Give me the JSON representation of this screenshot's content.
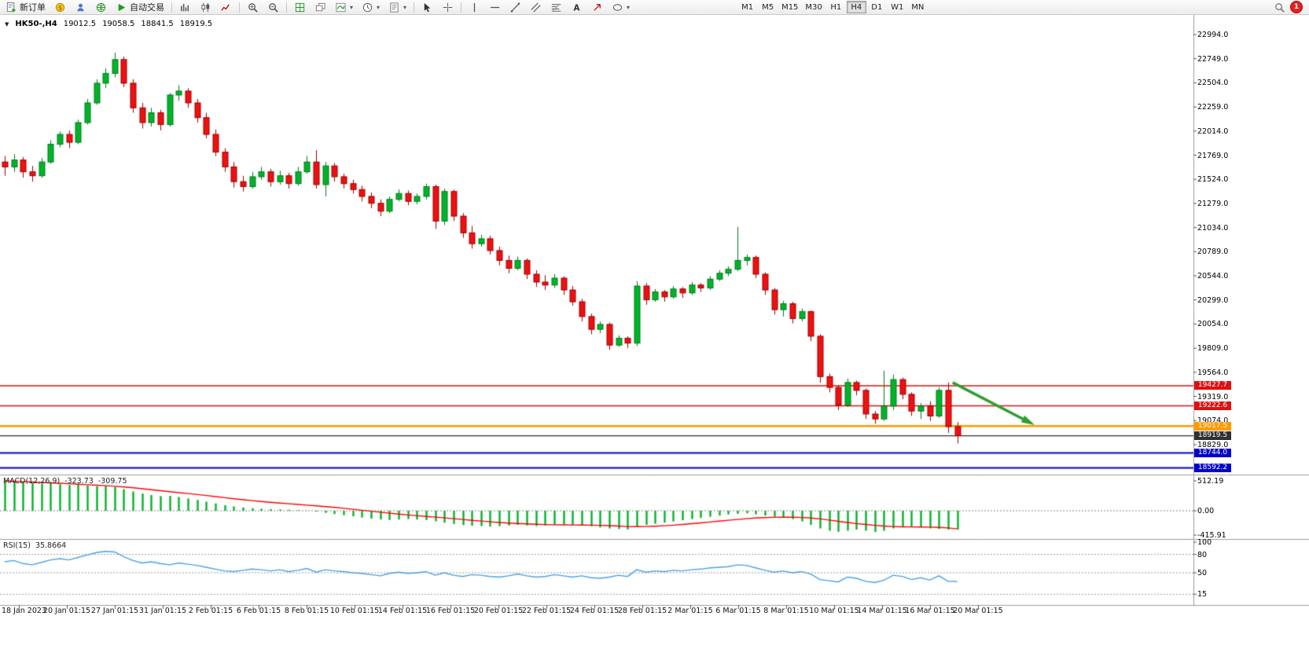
{
  "toolbar": {
    "new_order_label": "新订单",
    "auto_trading_label": "自动交易",
    "timeframes": [
      "M1",
      "M5",
      "M15",
      "M30",
      "H1",
      "H4",
      "D1",
      "W1",
      "MN"
    ],
    "active_timeframe": "H4",
    "notification_count": "1"
  },
  "symbol_bar": {
    "symbol": "HK50-,H4",
    "open": "19012.5",
    "high": "19058.5",
    "low": "18841.5",
    "close": "18919.5"
  },
  "colors": {
    "candle_up": "#00b42a",
    "candle_up_border": "#007a1c",
    "candle_down": "#ef1010",
    "candle_down_border": "#9c0000",
    "macd_hist": "#00b42a",
    "macd_signal": "#ff0000",
    "rsi_line": "#4aa0e0",
    "arrow": "#2f9e2f",
    "level_red": "#dd1111",
    "level_orange": "#ff9b00",
    "level_black": "#303030",
    "level_blue": "#0000c8"
  },
  "chart_data": {
    "type": "candlestick",
    "title": "HK50-,H4",
    "timeframe": "H4",
    "ohlc_display": {
      "open": 19012.5,
      "high": 19058.5,
      "low": 18841.5,
      "close": 18919.5
    },
    "y_axis_range": [
      18541,
      23106
    ],
    "y_ticks": [
      "22994.0",
      "22749.0",
      "22504.0",
      "22259.0",
      "22014.0",
      "21769.0",
      "21524.0",
      "21279.0",
      "21034.0",
      "20789.0",
      "20544.0",
      "20299.0",
      "20054.0",
      "19809.0",
      "19564.0",
      "19319.0",
      "19074.0",
      "18829.0"
    ],
    "x_labels": [
      "18 Jan 2023",
      "20 Jan 01:15",
      "27 Jan 01:15",
      "31 Jan 01:15",
      "2 Feb 01:15",
      "6 Feb 01:15",
      "8 Feb 01:15",
      "10 Feb 01:15",
      "14 Feb 01:15",
      "16 Feb 01:15",
      "20 Feb 01:15",
      "22 Feb 01:15",
      "24 Feb 01:15",
      "28 Feb 01:15",
      "2 Mar 01:15",
      "6 Mar 01:15",
      "8 Mar 01:15",
      "10 Mar 01:15",
      "14 Mar 01:15",
      "16 Mar 01:15",
      "20 Mar 01:15"
    ],
    "levels": [
      {
        "label": "19427.7",
        "price": 19427.7,
        "style": "red"
      },
      {
        "label": "19222.6",
        "price": 19222.6,
        "style": "red"
      },
      {
        "label": "19017.5",
        "price": 19017.5,
        "style": "orange"
      },
      {
        "label": "18919.5",
        "price": 18919.5,
        "style": "black"
      },
      {
        "label": "18744.0",
        "price": 18744.0,
        "style": "blue"
      },
      {
        "label": "18592.2",
        "price": 18592.2,
        "style": "blue"
      }
    ],
    "arrow_object": {
      "from_bar": 103.5,
      "from_price": 19460,
      "to_bar": 112,
      "to_price": 19050
    },
    "ohlc": [
      [
        21700,
        21760,
        21560,
        21650
      ],
      [
        21650,
        21780,
        21600,
        21720
      ],
      [
        21720,
        21750,
        21540,
        21600
      ],
      [
        21600,
        21660,
        21500,
        21560
      ],
      [
        21560,
        21740,
        21540,
        21700
      ],
      [
        21700,
        21920,
        21680,
        21880
      ],
      [
        21880,
        22010,
        21850,
        21980
      ],
      [
        21980,
        22020,
        21840,
        21900
      ],
      [
        21900,
        22130,
        21880,
        22100
      ],
      [
        22100,
        22340,
        22080,
        22300
      ],
      [
        22300,
        22540,
        22280,
        22500
      ],
      [
        22500,
        22650,
        22450,
        22600
      ],
      [
        22600,
        22810,
        22560,
        22740
      ],
      [
        22740,
        22770,
        22460,
        22500
      ],
      [
        22500,
        22540,
        22200,
        22250
      ],
      [
        22250,
        22300,
        22040,
        22100
      ],
      [
        22100,
        22250,
        22060,
        22200
      ],
      [
        22200,
        22230,
        22020,
        22080
      ],
      [
        22080,
        22400,
        22060,
        22380
      ],
      [
        22380,
        22480,
        22320,
        22420
      ],
      [
        22420,
        22450,
        22250,
        22300
      ],
      [
        22300,
        22340,
        22100,
        22150
      ],
      [
        22150,
        22200,
        21940,
        21980
      ],
      [
        21980,
        22030,
        21760,
        21800
      ],
      [
        21800,
        21840,
        21600,
        21650
      ],
      [
        21650,
        21700,
        21440,
        21500
      ],
      [
        21500,
        21560,
        21400,
        21450
      ],
      [
        21450,
        21600,
        21430,
        21550
      ],
      [
        21550,
        21650,
        21520,
        21600
      ],
      [
        21600,
        21630,
        21450,
        21500
      ],
      [
        21500,
        21610,
        21470,
        21560
      ],
      [
        21560,
        21590,
        21430,
        21480
      ],
      [
        21480,
        21650,
        21460,
        21600
      ],
      [
        21600,
        21760,
        21580,
        21700
      ],
      [
        21700,
        21820,
        21430,
        21470
      ],
      [
        21470,
        21700,
        21350,
        21660
      ],
      [
        21660,
        21690,
        21500,
        21550
      ],
      [
        21550,
        21580,
        21430,
        21480
      ],
      [
        21480,
        21520,
        21380,
        21420
      ],
      [
        21420,
        21460,
        21300,
        21350
      ],
      [
        21350,
        21390,
        21230,
        21280
      ],
      [
        21280,
        21320,
        21150,
        21200
      ],
      [
        21200,
        21350,
        21180,
        21320
      ],
      [
        21320,
        21420,
        21300,
        21380
      ],
      [
        21380,
        21410,
        21260,
        21300
      ],
      [
        21300,
        21380,
        21270,
        21350
      ],
      [
        21350,
        21480,
        21320,
        21450
      ],
      [
        21450,
        21470,
        21020,
        21100
      ],
      [
        21100,
        21430,
        21060,
        21400
      ],
      [
        21400,
        21420,
        21100,
        21150
      ],
      [
        21150,
        21180,
        20930,
        20980
      ],
      [
        20980,
        21050,
        20820,
        20870
      ],
      [
        20870,
        20960,
        20840,
        20920
      ],
      [
        20920,
        20950,
        20760,
        20800
      ],
      [
        20800,
        20840,
        20650,
        20700
      ],
      [
        20700,
        20750,
        20570,
        20620
      ],
      [
        20620,
        20740,
        20600,
        20700
      ],
      [
        20700,
        20720,
        20510,
        20560
      ],
      [
        20560,
        20600,
        20430,
        20480
      ],
      [
        20480,
        20550,
        20400,
        20450
      ],
      [
        20450,
        20560,
        20420,
        20520
      ],
      [
        20520,
        20540,
        20350,
        20400
      ],
      [
        20400,
        20440,
        20240,
        20280
      ],
      [
        20280,
        20310,
        20080,
        20130
      ],
      [
        20130,
        20160,
        19950,
        20000
      ],
      [
        20000,
        20080,
        19960,
        20050
      ],
      [
        20050,
        20070,
        19790,
        19840
      ],
      [
        19840,
        19940,
        19820,
        19910
      ],
      [
        19910,
        19930,
        19810,
        19860
      ],
      [
        19860,
        20490,
        19830,
        20440
      ],
      [
        20440,
        20470,
        20250,
        20300
      ],
      [
        20300,
        20410,
        20280,
        20380
      ],
      [
        20380,
        20400,
        20280,
        20330
      ],
      [
        20330,
        20440,
        20310,
        20410
      ],
      [
        20410,
        20430,
        20320,
        20370
      ],
      [
        20370,
        20480,
        20350,
        20450
      ],
      [
        20450,
        20470,
        20380,
        20420
      ],
      [
        20420,
        20540,
        20400,
        20510
      ],
      [
        20510,
        20600,
        20490,
        20570
      ],
      [
        20570,
        20640,
        20540,
        20610
      ],
      [
        20610,
        21040,
        20590,
        20700
      ],
      [
        20700,
        20760,
        20650,
        20730
      ],
      [
        20730,
        20750,
        20520,
        20560
      ],
      [
        20560,
        20580,
        20350,
        20400
      ],
      [
        20400,
        20420,
        20150,
        20200
      ],
      [
        20200,
        20290,
        20130,
        20260
      ],
      [
        20260,
        20280,
        20060,
        20110
      ],
      [
        20110,
        20210,
        20080,
        20180
      ],
      [
        20180,
        20190,
        19880,
        19930
      ],
      [
        19930,
        19950,
        19460,
        19520
      ],
      [
        19520,
        19550,
        19360,
        19410
      ],
      [
        19410,
        19430,
        19180,
        19230
      ],
      [
        19230,
        19500,
        19210,
        19460
      ],
      [
        19460,
        19480,
        19330,
        19380
      ],
      [
        19380,
        19400,
        19090,
        19140
      ],
      [
        19140,
        19170,
        19040,
        19090
      ],
      [
        19090,
        19580,
        19070,
        19220
      ],
      [
        19220,
        19540,
        19180,
        19490
      ],
      [
        19490,
        19510,
        19290,
        19340
      ],
      [
        19340,
        19360,
        19120,
        19170
      ],
      [
        19170,
        19250,
        19090,
        19220
      ],
      [
        19220,
        19270,
        19070,
        19120
      ],
      [
        19120,
        19410,
        19100,
        19380
      ],
      [
        19380,
        19460,
        18950,
        19012
      ],
      [
        19012.5,
        19058.5,
        18841.5,
        18919.5
      ]
    ],
    "indicators": {
      "macd": {
        "label": "MACD(12,26,9)",
        "value_main": "-323.73",
        "value_signal": "-309.75",
        "axis_labels": [
          "512.19",
          "0.00",
          "-415.91"
        ],
        "axis_values": [
          512.19,
          0,
          -415.91
        ],
        "histogram": [
          500,
          505,
          490,
          480,
          465,
          470,
          455,
          440,
          445,
          430,
          420,
          425,
          405,
          370,
          330,
          295,
          270,
          250,
          255,
          235,
          210,
          185,
          155,
          125,
          95,
          75,
          55,
          45,
          35,
          28,
          22,
          16,
          10,
          4,
          -15,
          -35,
          -55,
          -75,
          -95,
          -115,
          -135,
          -148,
          -158,
          -150,
          -142,
          -150,
          -158,
          -180,
          -205,
          -225,
          -245,
          -255,
          -262,
          -270,
          -262,
          -252,
          -242,
          -252,
          -262,
          -252,
          -242,
          -232,
          -242,
          -252,
          -265,
          -285,
          -302,
          -312,
          -320,
          -282,
          -242,
          -222,
          -202,
          -182,
          -162,
          -142,
          -122,
          -102,
          -82,
          -62,
          -52,
          -42,
          -62,
          -82,
          -102,
          -122,
          -142,
          -182,
          -242,
          -302,
          -342,
          -360,
          -342,
          -322,
          -342,
          -362,
          -342,
          -302,
          -282,
          -272,
          -282,
          -302,
          -312,
          -322,
          -323.73
        ],
        "signal": [
          512,
          506,
          500,
          493,
          486,
          479,
          471,
          463,
          455,
          447,
          439,
          430,
          420,
          408,
          394,
          378,
          361,
          344,
          327,
          311,
          295,
          278,
          261,
          243,
          225,
          207,
          190,
          174,
          159,
          145,
          132,
          120,
          108,
          97,
          85,
          72,
          58,
          43,
          27,
          10,
          -7,
          -24,
          -41,
          -57,
          -71,
          -84,
          -96,
          -108,
          -121,
          -135,
          -149,
          -163,
          -176,
          -189,
          -200,
          -210,
          -218,
          -225,
          -231,
          -236,
          -240,
          -242,
          -243,
          -244,
          -246,
          -249,
          -254,
          -261,
          -269,
          -272,
          -270,
          -264,
          -256,
          -246,
          -234,
          -221,
          -207,
          -192,
          -177,
          -162,
          -148,
          -135,
          -124,
          -116,
          -111,
          -109,
          -110,
          -115,
          -124,
          -139,
          -158,
          -180,
          -201,
          -219,
          -235,
          -250,
          -262,
          -270,
          -275,
          -277,
          -278,
          -280,
          -285,
          -293,
          -309.75
        ]
      },
      "rsi": {
        "label": "RSI(15)",
        "value": "35.8664",
        "axis_labels": [
          "100",
          "80",
          "50",
          "15"
        ],
        "axis_values": [
          100,
          80,
          50,
          15
        ],
        "level_lines": [
          80,
          50,
          15
        ],
        "series": [
          68,
          70,
          65,
          63,
          67,
          71,
          73,
          71,
          75,
          79,
          83,
          85,
          84,
          76,
          70,
          66,
          68,
          65,
          63,
          66,
          64,
          62,
          59,
          56,
          53,
          52,
          54,
          56,
          55,
          53,
          55,
          52,
          54,
          57,
          51,
          55,
          53,
          52,
          50,
          49,
          47,
          45,
          49,
          51,
          49,
          50,
          52,
          46,
          50,
          46,
          44,
          47,
          46,
          44,
          43,
          45,
          48,
          45,
          43,
          44,
          47,
          45,
          43,
          45,
          42,
          41,
          43,
          46,
          44,
          55,
          51,
          53,
          52,
          54,
          53,
          55,
          56,
          58,
          59,
          60,
          63,
          62,
          58,
          54,
          51,
          53,
          50,
          52,
          48,
          39,
          37,
          35,
          43,
          41,
          36,
          34,
          38,
          46,
          44,
          39,
          42,
          38,
          45,
          36,
          35.87
        ]
      }
    }
  }
}
